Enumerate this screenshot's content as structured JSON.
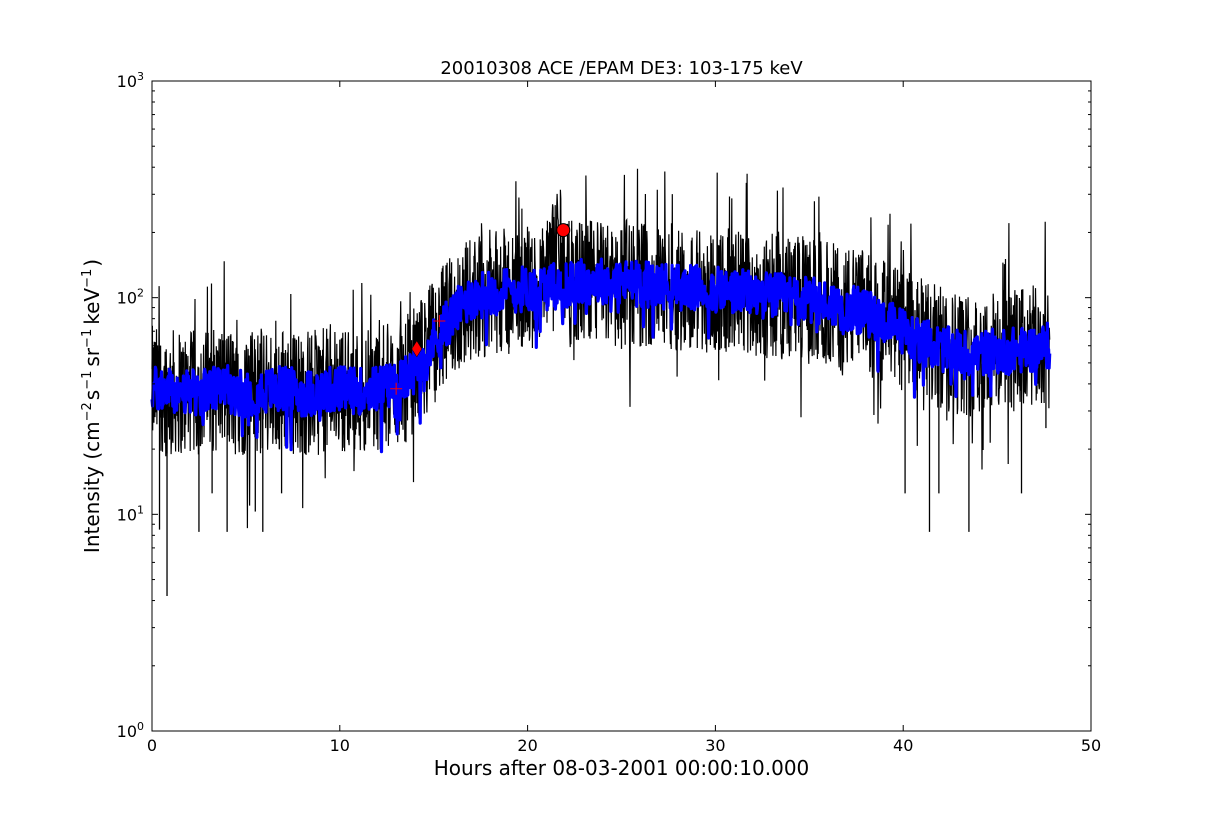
{
  "chart_data": {
    "type": "line",
    "title": "20010308 ACE /EPAM DE3: 103-175 keV",
    "xlabel": "Hours after 08-03-2001 00:00:10.000",
    "ylabel_parts": {
      "prefix": "Intensity (cm",
      "sup1": "−2",
      "s": "s",
      "sup2": "−1",
      "sr": "sr",
      "sup3": "−1",
      "kev": "keV",
      "sup4": "−1",
      "suffix": ")"
    },
    "xlim": [
      0,
      50
    ],
    "ylim": [
      1,
      1000
    ],
    "yscale": "log",
    "grid": false,
    "x_ticks": [
      0,
      10,
      20,
      30,
      40,
      50
    ],
    "x_tick_labels": [
      "0",
      "10",
      "20",
      "30",
      "40",
      "50"
    ],
    "y_ticks": [
      1,
      10,
      100,
      1000
    ],
    "y_tick_labels": [
      {
        "base": "10",
        "exp": "0"
      },
      {
        "base": "10",
        "exp": "1"
      },
      {
        "base": "10",
        "exp": "2"
      },
      {
        "base": "10",
        "exp": "3"
      }
    ],
    "series": [
      {
        "role": "raw",
        "color": "#000000",
        "x": [
          0,
          1,
          2,
          3,
          4,
          5,
          6,
          7,
          8,
          9,
          10,
          11,
          12,
          13,
          13.5,
          14,
          14.5,
          15,
          15.5,
          16,
          16.5,
          17,
          18,
          19,
          20,
          21,
          21.9,
          22,
          23,
          24,
          25,
          26,
          27,
          28,
          29,
          30,
          31,
          32,
          33,
          34,
          35,
          36,
          37,
          38,
          39,
          40,
          41,
          42,
          43,
          44,
          45,
          46,
          47,
          47.8
        ],
        "y": [
          38,
          37,
          36,
          37,
          38,
          36,
          37,
          38,
          36,
          37,
          38,
          37,
          38,
          40,
          42,
          47,
          55,
          63,
          72,
          82,
          92,
          100,
          105,
          108,
          110,
          112,
          200,
          115,
          118,
          120,
          118,
          116,
          114,
          112,
          110,
          108,
          106,
          104,
          102,
          100,
          97,
          94,
          90,
          85,
          78,
          70,
          63,
          58,
          56,
          55,
          56,
          57,
          58,
          60
        ],
        "scatter_min": [
          8.5,
          4.2,
          8.3,
          12.5,
          8.3,
          10.3,
          8.3,
          12.5,
          25,
          40,
          55,
          58,
          60,
          55,
          12.5,
          8.3,
          12.5,
          8.3,
          12.5,
          25
        ],
        "scatter_min_x": [
          0.4,
          0.8,
          2.5,
          3.2,
          4.0,
          5.5,
          5.9,
          6.9,
          11.5,
          15.5,
          19.0,
          25.0,
          31.5,
          37.3,
          40.1,
          41.4,
          41.9,
          43.5,
          46.3,
          47.6
        ],
        "spike_low_y": [
          8.3,
          4.2,
          8.3,
          8.3,
          4.2,
          8.3,
          25,
          25,
          10.4,
          12.5,
          8.3,
          12.5,
          8.3
        ]
      },
      {
        "role": "smoothed",
        "color": "#0000ff",
        "x": [
          0,
          1,
          2,
          3,
          4,
          5,
          6,
          7,
          8,
          9,
          10,
          11,
          12,
          13,
          13.5,
          14,
          14.5,
          15,
          15.5,
          16,
          16.5,
          17,
          18,
          19,
          20,
          21,
          22,
          23,
          24,
          25,
          26,
          27,
          28,
          29,
          30,
          31,
          32,
          33,
          34,
          35,
          36,
          37,
          38,
          39,
          40,
          41,
          42,
          43,
          44,
          45,
          46,
          47,
          47.8
        ],
        "y": [
          38,
          37,
          36,
          37,
          38,
          36,
          37,
          38,
          36,
          37,
          38,
          37,
          38,
          40,
          42,
          47,
          55,
          63,
          72,
          82,
          92,
          100,
          105,
          108,
          110,
          112,
          114,
          118,
          120,
          118,
          116,
          114,
          112,
          110,
          108,
          106,
          104,
          102,
          100,
          97,
          94,
          90,
          85,
          78,
          70,
          63,
          58,
          56,
          55,
          56,
          57,
          58,
          60
        ]
      }
    ],
    "markers": [
      {
        "shape": "circle",
        "x": 21.9,
        "y": 205,
        "color": "#ff0000"
      },
      {
        "shape": "diamond",
        "x": 14.1,
        "y": 58,
        "color": "#ff0000"
      },
      {
        "shape": "plus",
        "x": 13.0,
        "y": 38,
        "color": "#ff0000"
      },
      {
        "shape": "plus",
        "x": 15.3,
        "y": 78,
        "color": "#ff0000"
      }
    ]
  }
}
